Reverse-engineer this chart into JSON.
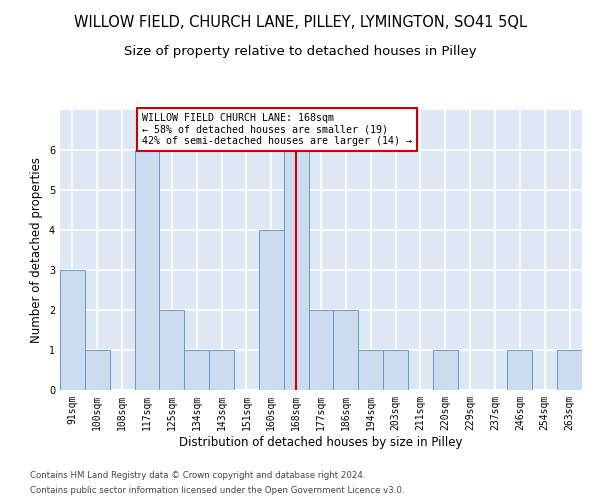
{
  "title_line1": "WILLOW FIELD, CHURCH LANE, PILLEY, LYMINGTON, SO41 5QL",
  "title_line2": "Size of property relative to detached houses in Pilley",
  "xlabel": "Distribution of detached houses by size in Pilley",
  "ylabel": "Number of detached properties",
  "bins": [
    "91sqm",
    "100sqm",
    "108sqm",
    "117sqm",
    "125sqm",
    "134sqm",
    "143sqm",
    "151sqm",
    "160sqm",
    "168sqm",
    "177sqm",
    "186sqm",
    "194sqm",
    "203sqm",
    "211sqm",
    "220sqm",
    "229sqm",
    "237sqm",
    "246sqm",
    "254sqm",
    "263sqm"
  ],
  "values": [
    3,
    1,
    0,
    6,
    2,
    1,
    1,
    0,
    4,
    6,
    2,
    2,
    1,
    1,
    0,
    1,
    0,
    0,
    1,
    0,
    1
  ],
  "bar_color": "#ccdcee",
  "bar_edge_color": "#6699cc",
  "vline_x_index": 9,
  "vline_color": "#cc0000",
  "annotation_box_text": "WILLOW FIELD CHURCH LANE: 168sqm\n← 58% of detached houses are smaller (19)\n42% of semi-detached houses are larger (14) →",
  "annotation_box_color": "#cc0000",
  "annotation_box_bg": "#ffffff",
  "ylim": [
    0,
    7
  ],
  "yticks": [
    0,
    1,
    2,
    3,
    4,
    5,
    6
  ],
  "footer_line1": "Contains HM Land Registry data © Crown copyright and database right 2024.",
  "footer_line2": "Contains public sector information licensed under the Open Government Licence v3.0.",
  "background_color": "#dde8f4",
  "grid_color": "#ffffff",
  "title_fontsize": 10.5,
  "subtitle_fontsize": 9.5,
  "tick_fontsize": 7,
  "label_fontsize": 8.5,
  "footer_fontsize": 6.2
}
